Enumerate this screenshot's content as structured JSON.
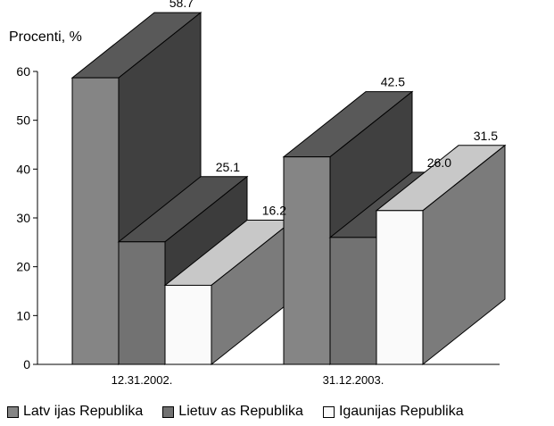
{
  "chart_data": {
    "type": "bar",
    "style": "3d-stacked-depth",
    "ylabel": "Procenti, %",
    "categories": [
      "12.31.2002.",
      "31.12.2003."
    ],
    "ylim": [
      0,
      60
    ],
    "yticks": [
      0,
      10,
      20,
      30,
      40,
      50,
      60
    ],
    "grid": false,
    "legend_position": "bottom",
    "series": [
      {
        "name": "Latv ijas  Republika",
        "values": [
          58.7,
          42.5
        ],
        "value_labels": [
          "58.7",
          "42.5"
        ],
        "color": "#858585",
        "color_top": "#595959",
        "color_side": "#404040"
      },
      {
        "name": "Lietuv as  Republika",
        "values": [
          25.1,
          26.0
        ],
        "value_labels": [
          "25.1",
          "26.0"
        ],
        "color": "#727272",
        "color_top": "#505050",
        "color_side": "#3c3c3c"
      },
      {
        "name": "Igaunijas  Republika",
        "values": [
          16.2,
          31.5
        ],
        "value_labels": [
          "16.2",
          "31.5"
        ],
        "color": "#fafafa",
        "color_top": "#c8c8c8",
        "color_side": "#7b7b7b"
      }
    ]
  }
}
